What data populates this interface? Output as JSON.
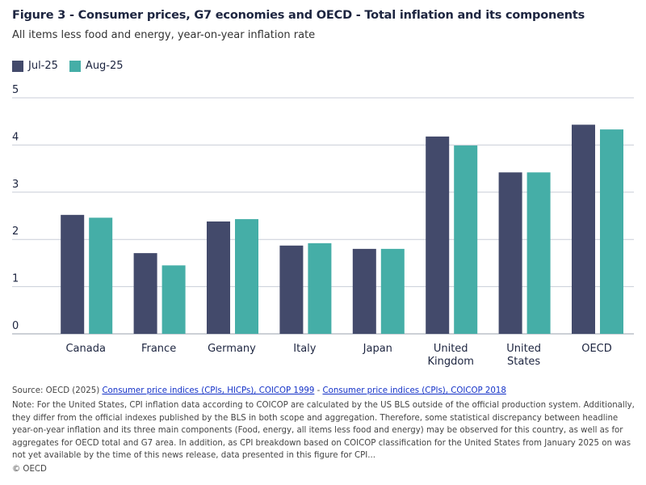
{
  "title": "Figure 3 - Consumer prices, G7 economies and OECD - Total inflation and its components",
  "subtitle": "All items less food and energy, year-on-year inflation rate",
  "colors": {
    "jul": "#434a6b",
    "aug": "#45aea7",
    "grid": "#c9ced8"
  },
  "chart_data": {
    "type": "bar",
    "categories": [
      "Canada",
      "France",
      "Germany",
      "Italy",
      "Japan",
      "United Kingdom",
      "United States",
      "OECD"
    ],
    "series": [
      {
        "name": "Jul-25",
        "values": [
          2.52,
          1.71,
          2.38,
          1.87,
          1.8,
          4.18,
          3.42,
          4.43
        ]
      },
      {
        "name": "Aug-25",
        "values": [
          2.46,
          1.45,
          2.43,
          1.92,
          1.8,
          3.99,
          3.42,
          4.33
        ]
      }
    ],
    "yticks": [
      "0",
      "1",
      "2",
      "3",
      "4",
      "5"
    ],
    "ylim": [
      0,
      5
    ],
    "grid": true,
    "legend": "top-left"
  },
  "footer": {
    "source_prefix": "Source: OECD (2025) ",
    "link1": "Consumer price indices (CPIs, HICPs), COICOP 1999",
    "sep": " - ",
    "link2": "Consumer price indices (CPIs), COICOP 2018",
    "note": "Note: For the United States, CPI inflation data according to COICOP are calculated by the US BLS outside of the official production system. Additionally, they differ from the official indexes published by the BLS in both scope and aggregation. Therefore, some statistical discrepancy between headline year-on-year inflation and its three main components (Food, energy, all items less food and energy) may be observed for this country, as well as for aggregates for OECD total and G7 area. In addition, as CPI breakdown based on COICOP classification for the United States from January 2025 on was not yet available by the time of this news release, data presented in this figure for CPI...",
    "copyright": "© OECD"
  }
}
